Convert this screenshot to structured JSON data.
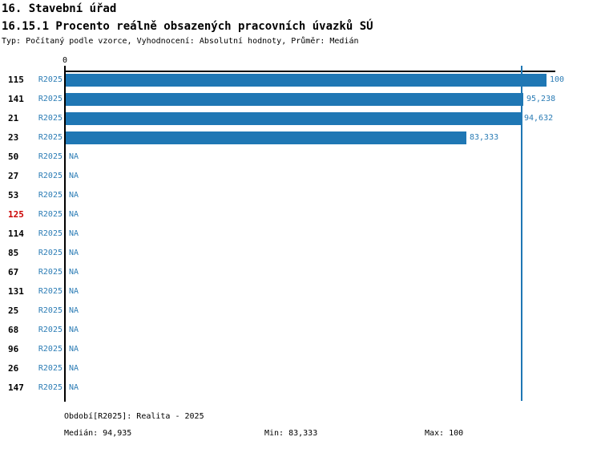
{
  "colors": {
    "bar": "#1f77b4",
    "median_line": "#1f77b4",
    "text_blue": "#2b7cb5",
    "highlight_red": "#cc0000",
    "text_black": "#000000"
  },
  "header": {
    "section_title": "16. Stavební úřad",
    "metric_title": "16.15.1 Procento reálně obsazených pracovních úvazků SÚ",
    "meta_line": "Typ: Počítaný podle vzorce, Vyhodnocení: Absolutní hodnoty, Průměr: Medián"
  },
  "chart_data": {
    "type": "bar",
    "orientation": "horizontal",
    "title": "16.15.1 Procento reálně obsazených pracovních úvazků SÚ",
    "series_name": "R2025",
    "categories": [
      "115",
      "141",
      "21",
      "23",
      "50",
      "27",
      "53",
      "125",
      "114",
      "85",
      "67",
      "131",
      "25",
      "68",
      "96",
      "26",
      "147"
    ],
    "values": [
      100,
      95.238,
      94.632,
      83.333,
      null,
      null,
      null,
      null,
      null,
      null,
      null,
      null,
      null,
      null,
      null,
      null,
      null
    ],
    "value_labels": [
      "100",
      "95,238",
      "94,632",
      "83,333",
      "NA",
      "NA",
      "NA",
      "NA",
      "NA",
      "NA",
      "NA",
      "NA",
      "NA",
      "NA",
      "NA",
      "NA",
      "NA"
    ],
    "highlighted_categories": [
      "125"
    ],
    "median_value": 94.935,
    "x_axis": {
      "tick_labels": [
        "0"
      ],
      "range": [
        0,
        100
      ]
    },
    "grid": false,
    "legend_position": "none"
  },
  "footer": {
    "period": "Období[R2025]: Realita - 2025",
    "median": "Medián: 94,935",
    "min": "Min: 83,333",
    "max": "Max: 100"
  }
}
